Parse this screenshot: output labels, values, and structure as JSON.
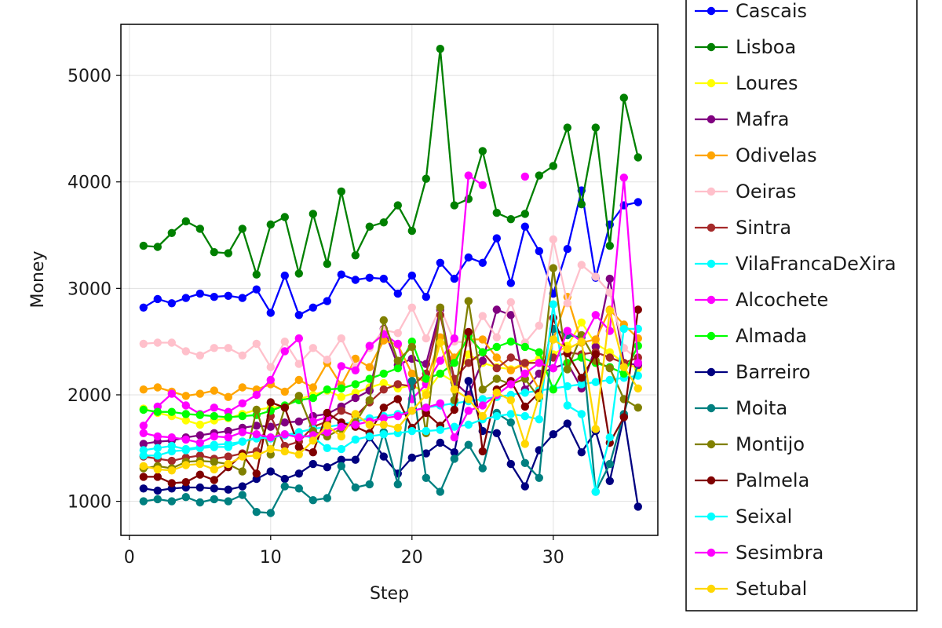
{
  "chart_data": {
    "type": "line",
    "title": "",
    "xlabel": "Step",
    "ylabel": "Money",
    "xlim": [
      -0.6,
      37.4
    ],
    "ylim": [
      680,
      5480
    ],
    "xticks": [
      0,
      10,
      20,
      30
    ],
    "yticks": [
      1000,
      2000,
      3000,
      4000,
      5000
    ],
    "grid": true,
    "legend_position": "outside-right",
    "x": [
      1,
      2,
      3,
      4,
      5,
      6,
      7,
      8,
      9,
      10,
      11,
      12,
      13,
      14,
      15,
      16,
      17,
      18,
      19,
      20,
      21,
      22,
      23,
      24,
      25,
      26,
      27,
      28,
      29,
      30,
      31,
      32,
      33,
      34,
      35,
      36
    ],
    "series": [
      {
        "name": "Cascais",
        "color": "#0000ff",
        "values": [
          2820,
          2900,
          2860,
          2910,
          2950,
          2920,
          2930,
          2910,
          2990,
          2770,
          3120,
          2750,
          2820,
          2880,
          3130,
          3080,
          3100,
          3090,
          2950,
          3120,
          2920,
          3240,
          3090,
          3290,
          3240,
          3470,
          3050,
          3580,
          3350,
          2950,
          3370,
          3920,
          3100,
          3600,
          3780,
          3810
        ]
      },
      {
        "name": "Lisboa",
        "color": "#008000",
        "values": [
          3400,
          3390,
          3520,
          3630,
          3560,
          3340,
          3330,
          3560,
          3130,
          3600,
          3670,
          3140,
          3700,
          3230,
          3910,
          3310,
          3580,
          3620,
          3780,
          3540,
          4030,
          5250,
          3780,
          3840,
          4290,
          3710,
          3650,
          3700,
          4060,
          4150,
          4510,
          3790,
          4510,
          3400,
          4790,
          4230
        ]
      },
      {
        "name": "Loures",
        "color": "#ffff00",
        "values": [
          1870,
          1830,
          1800,
          1760,
          1720,
          1760,
          1780,
          1820,
          1860,
          1880,
          1890,
          1960,
          2000,
          2040,
          1980,
          2020,
          2070,
          2110,
          2060,
          2090,
          2020,
          2200,
          2120,
          2380,
          2300,
          2260,
          2240,
          2300,
          2340,
          2380,
          2460,
          2680,
          2480,
          2400,
          2300,
          2250
        ]
      },
      {
        "name": "Mafra",
        "color": "#800080",
        "values": [
          1540,
          1560,
          1570,
          1600,
          1620,
          1640,
          1660,
          1690,
          1710,
          1700,
          1740,
          1750,
          1800,
          1820,
          1890,
          1970,
          2040,
          2620,
          2280,
          2340,
          2290,
          2800,
          2120,
          2000,
          2320,
          2800,
          2750,
          2050,
          2200,
          2250,
          2300,
          2060,
          2450,
          3090,
          2300,
          2280
        ]
      },
      {
        "name": "Odivelas",
        "color": "#ffa500",
        "values": [
          2050,
          2070,
          2030,
          1990,
          2010,
          2040,
          1980,
          2070,
          2050,
          2100,
          2030,
          2140,
          2070,
          2300,
          2090,
          2340,
          2260,
          2510,
          2470,
          2200,
          2110,
          2540,
          2350,
          2520,
          2520,
          2350,
          2230,
          2290,
          2050,
          2520,
          2920,
          2490,
          2520,
          2800,
          2660,
          2530
        ]
      },
      {
        "name": "Oeiras",
        "color": "#ffc0cb",
        "values": [
          2480,
          2490,
          2490,
          2410,
          2370,
          2440,
          2440,
          2370,
          2480,
          2260,
          2500,
          2290,
          2440,
          2330,
          2530,
          2260,
          2440,
          2610,
          2580,
          2820,
          2530,
          2820,
          2500,
          2490,
          2740,
          2540,
          2870,
          2490,
          2650,
          3460,
          2860,
          3220,
          3110,
          2960,
          2440,
          2330
        ]
      },
      {
        "name": "Sintra",
        "color": "#a52a2a",
        "values": [
          1420,
          1400,
          1380,
          1410,
          1430,
          1400,
          1420,
          1450,
          1470,
          1800,
          1520,
          1560,
          1700,
          1750,
          1850,
          1800,
          1930,
          2050,
          2100,
          2080,
          2200,
          2750,
          2150,
          2300,
          2400,
          2250,
          2350,
          2300,
          2300,
          2350,
          2400,
          2380,
          2400,
          2350,
          2300,
          2350
        ]
      },
      {
        "name": "VilaFrancaDeXira",
        "color": "#00ffff",
        "values": [
          1480,
          1500,
          1520,
          1490,
          1510,
          1530,
          1540,
          1560,
          1590,
          1600,
          1620,
          1650,
          1680,
          1700,
          1720,
          1750,
          1780,
          1800,
          1820,
          1850,
          1880,
          1900,
          1920,
          1940,
          1960,
          1980,
          2000,
          2020,
          2040,
          2060,
          2080,
          2100,
          2120,
          2140,
          2160,
          2180
        ]
      },
      {
        "name": "Alcochete",
        "color": "#ff00ff",
        "values": [
          1710,
          1890,
          2010,
          1900,
          1820,
          1880,
          1840,
          1920,
          2000,
          2140,
          2410,
          2530,
          1750,
          1790,
          2270,
          2230,
          2460,
          2570,
          2480,
          1960,
          2100,
          2320,
          2530,
          4060,
          3970,
          null,
          null,
          4050,
          null,
          null,
          null,
          null,
          null,
          null,
          null,
          null
        ]
      },
      {
        "name": "Almada",
        "color": "#00ff00",
        "values": [
          1860,
          1840,
          1840,
          1820,
          1810,
          1800,
          1790,
          1800,
          1810,
          1850,
          1900,
          1950,
          1970,
          2050,
          2060,
          2100,
          2150,
          2200,
          2250,
          2500,
          2150,
          2200,
          2300,
          2550,
          2400,
          2450,
          2500,
          2450,
          2400,
          2050,
          2300,
          2350,
          2300,
          2260,
          2200,
          2460
        ]
      },
      {
        "name": "Barreiro",
        "color": "#000080",
        "values": [
          1120,
          1100,
          1120,
          1130,
          1130,
          1120,
          1110,
          1140,
          1210,
          1280,
          1210,
          1260,
          1350,
          1320,
          1390,
          1390,
          1600,
          1420,
          1260,
          1410,
          1450,
          1550,
          1460,
          2130,
          1660,
          1640,
          1350,
          1140,
          1480,
          1630,
          1730,
          1460,
          1660,
          1190,
          1800,
          950
        ]
      },
      {
        "name": "Moita",
        "color": "#008080",
        "values": [
          1000,
          1020,
          1000,
          1040,
          990,
          1020,
          1000,
          1060,
          900,
          890,
          1140,
          1120,
          1010,
          1030,
          1330,
          1130,
          1160,
          1650,
          1160,
          2130,
          1220,
          1090,
          1400,
          1530,
          1310,
          1830,
          1740,
          1360,
          1220,
          2620,
          2560,
          2540,
          1090,
          1350,
          1820,
          2300
        ]
      },
      {
        "name": "Montijo",
        "color": "#808000",
        "values": [
          1310,
          1330,
          1310,
          1370,
          1380,
          1370,
          1350,
          1280,
          1860,
          1440,
          1880,
          1990,
          1660,
          1610,
          1680,
          1740,
          1950,
          2700,
          2320,
          2450,
          1640,
          2820,
          1950,
          2880,
          2050,
          2150,
          2100,
          2150,
          1970,
          3190,
          2240,
          2560,
          2320,
          2250,
          1960,
          1880
        ]
      },
      {
        "name": "Palmela",
        "color": "#800000",
        "values": [
          1230,
          1230,
          1170,
          1180,
          1250,
          1200,
          1320,
          1440,
          1260,
          1930,
          1880,
          1510,
          1460,
          1830,
          1740,
          1700,
          1640,
          1880,
          1960,
          1690,
          1830,
          1710,
          1860,
          2590,
          1470,
          2050,
          2130,
          1890,
          2020,
          2720,
          2390,
          2160,
          2380,
          1550,
          1790,
          2800
        ]
      },
      {
        "name": "Seixal",
        "color": "#00ffff",
        "values": [
          1430,
          1430,
          1470,
          1480,
          1500,
          1510,
          1510,
          1560,
          1600,
          1590,
          1630,
          1620,
          1600,
          1500,
          1490,
          1580,
          1610,
          1630,
          1640,
          1660,
          1660,
          1670,
          1700,
          1720,
          1770,
          1800,
          1820,
          1800,
          1770,
          2850,
          1900,
          1820,
          1090,
          1600,
          2620,
          2620
        ]
      },
      {
        "name": "Sesimbra",
        "color": "#ff00ff",
        "values": [
          1640,
          1610,
          1600,
          1580,
          1550,
          1610,
          1600,
          1650,
          1630,
          1600,
          1630,
          1600,
          1620,
          1650,
          1700,
          1720,
          1750,
          1780,
          1800,
          1850,
          1880,
          1920,
          1600,
          1850,
          1900,
          2000,
          2100,
          2200,
          2300,
          2250,
          2600,
          2500,
          2750,
          2600,
          4040,
          2300
        ]
      },
      {
        "name": "Setubal",
        "color": "#ffd700",
        "values": [
          1330,
          1300,
          1290,
          1340,
          1350,
          1300,
          1350,
          1420,
          1430,
          1490,
          1470,
          1440,
          1570,
          1710,
          1610,
          1820,
          1720,
          1720,
          1690,
          1850,
          2000,
          2490,
          2050,
          1960,
          1800,
          2020,
          1950,
          1540,
          1990,
          2520,
          2430,
          2500,
          1680,
          2790,
          2260,
          2060
        ]
      }
    ]
  }
}
